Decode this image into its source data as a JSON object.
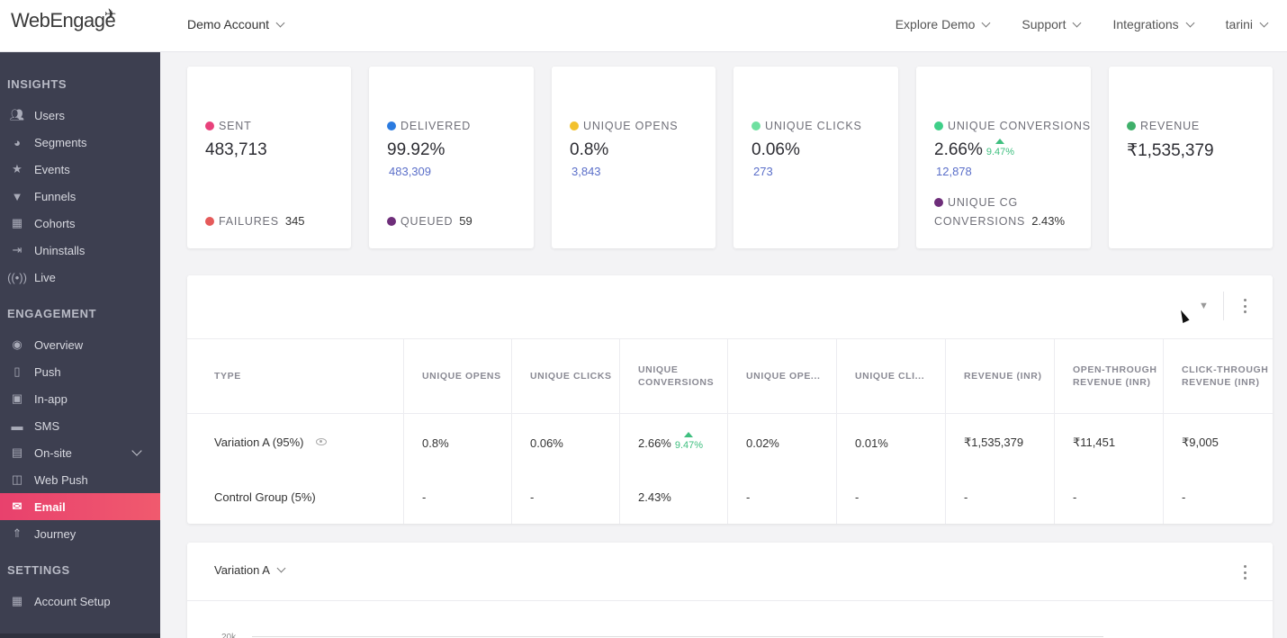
{
  "app": {
    "brand": "WebEngage",
    "account": "Demo Account",
    "topnav": [
      "Explore Demo",
      "Support",
      "Integrations",
      "tarini"
    ]
  },
  "sidebar": {
    "sections": [
      {
        "title": "INSIGHTS",
        "items": [
          {
            "label": "Users",
            "icon": "users-icon"
          },
          {
            "label": "Segments",
            "icon": "pie-icon"
          },
          {
            "label": "Events",
            "icon": "star-icon"
          },
          {
            "label": "Funnels",
            "icon": "funnel-icon"
          },
          {
            "label": "Cohorts",
            "icon": "grid-icon"
          },
          {
            "label": "Uninstalls",
            "icon": "uninstall-icon"
          },
          {
            "label": "Live",
            "icon": "live-icon"
          }
        ]
      },
      {
        "title": "ENGAGEMENT",
        "items": [
          {
            "label": "Overview",
            "icon": "eye-icon"
          },
          {
            "label": "Push",
            "icon": "push-icon"
          },
          {
            "label": "In-app",
            "icon": "inapp-icon"
          },
          {
            "label": "SMS",
            "icon": "sms-icon"
          },
          {
            "label": "On-site",
            "icon": "onsite-icon"
          },
          {
            "label": "Web Push",
            "icon": "webpush-icon"
          },
          {
            "label": "Email",
            "icon": "email-icon",
            "active": true
          },
          {
            "label": "Journey",
            "icon": "rocket-icon"
          }
        ]
      },
      {
        "title": "SETTINGS",
        "items": [
          {
            "label": "Account Setup",
            "icon": "setup-icon"
          }
        ]
      }
    ]
  },
  "stats": [
    {
      "label": "SENT",
      "color": "#e8417b",
      "value": "483,713",
      "sub": "",
      "footer_label": "FAILURES",
      "footer_value": "345",
      "footer_color": "#e55a5a"
    },
    {
      "label": "DELIVERED",
      "color": "#2b7be0",
      "value": "99.92%",
      "sub": "483,309",
      "footer_label": "QUEUED",
      "footer_value": "59",
      "footer_color": "#6e2e7a"
    },
    {
      "label": "UNIQUE OPENS",
      "color": "#f2c12e",
      "value": "0.8%",
      "sub": "3,843"
    },
    {
      "label": "UNIQUE CLICKS",
      "color": "#6fe0a0",
      "value": "0.06%",
      "sub": "273"
    },
    {
      "label": "UNIQUE CONVERSIONS",
      "color": "#3fcf88",
      "value": "2.66%",
      "uplift": "9.47%",
      "sub": "12,878",
      "cg_label_1": "UNIQUE CG",
      "cg_label_2": "CONVERSIONS",
      "cg_value": "2.43%",
      "cg_color": "#6e2e7a"
    },
    {
      "label": "REVENUE",
      "color": "#3fb06a",
      "value": "₹1,535,379"
    }
  ],
  "table": {
    "headers": [
      "TYPE",
      "UNIQUE OPENS",
      "UNIQUE CLICKS",
      "UNIQUE CONVERSIONS",
      "UNIQUE OPE...",
      "UNIQUE CLI...",
      "REVENUE (INR)",
      "OPEN-THROUGH REVENUE (INR)",
      "CLICK-THROUGH REVENUE (INR)"
    ],
    "rows": [
      {
        "type": "Variation A (95%)",
        "cells": [
          "0.8%",
          "0.06%",
          "2.66%",
          "0.02%",
          "0.01%",
          "₹1,535,379",
          "₹11,451",
          "₹9,005"
        ],
        "uplift": "9.47%"
      },
      {
        "type": "Control Group (5%)",
        "cells": [
          "-",
          "-",
          "2.43%",
          "-",
          "-",
          "-",
          "-",
          "-"
        ]
      }
    ]
  },
  "variation_panel": {
    "selected": "Variation A",
    "y_tick": "20k"
  }
}
